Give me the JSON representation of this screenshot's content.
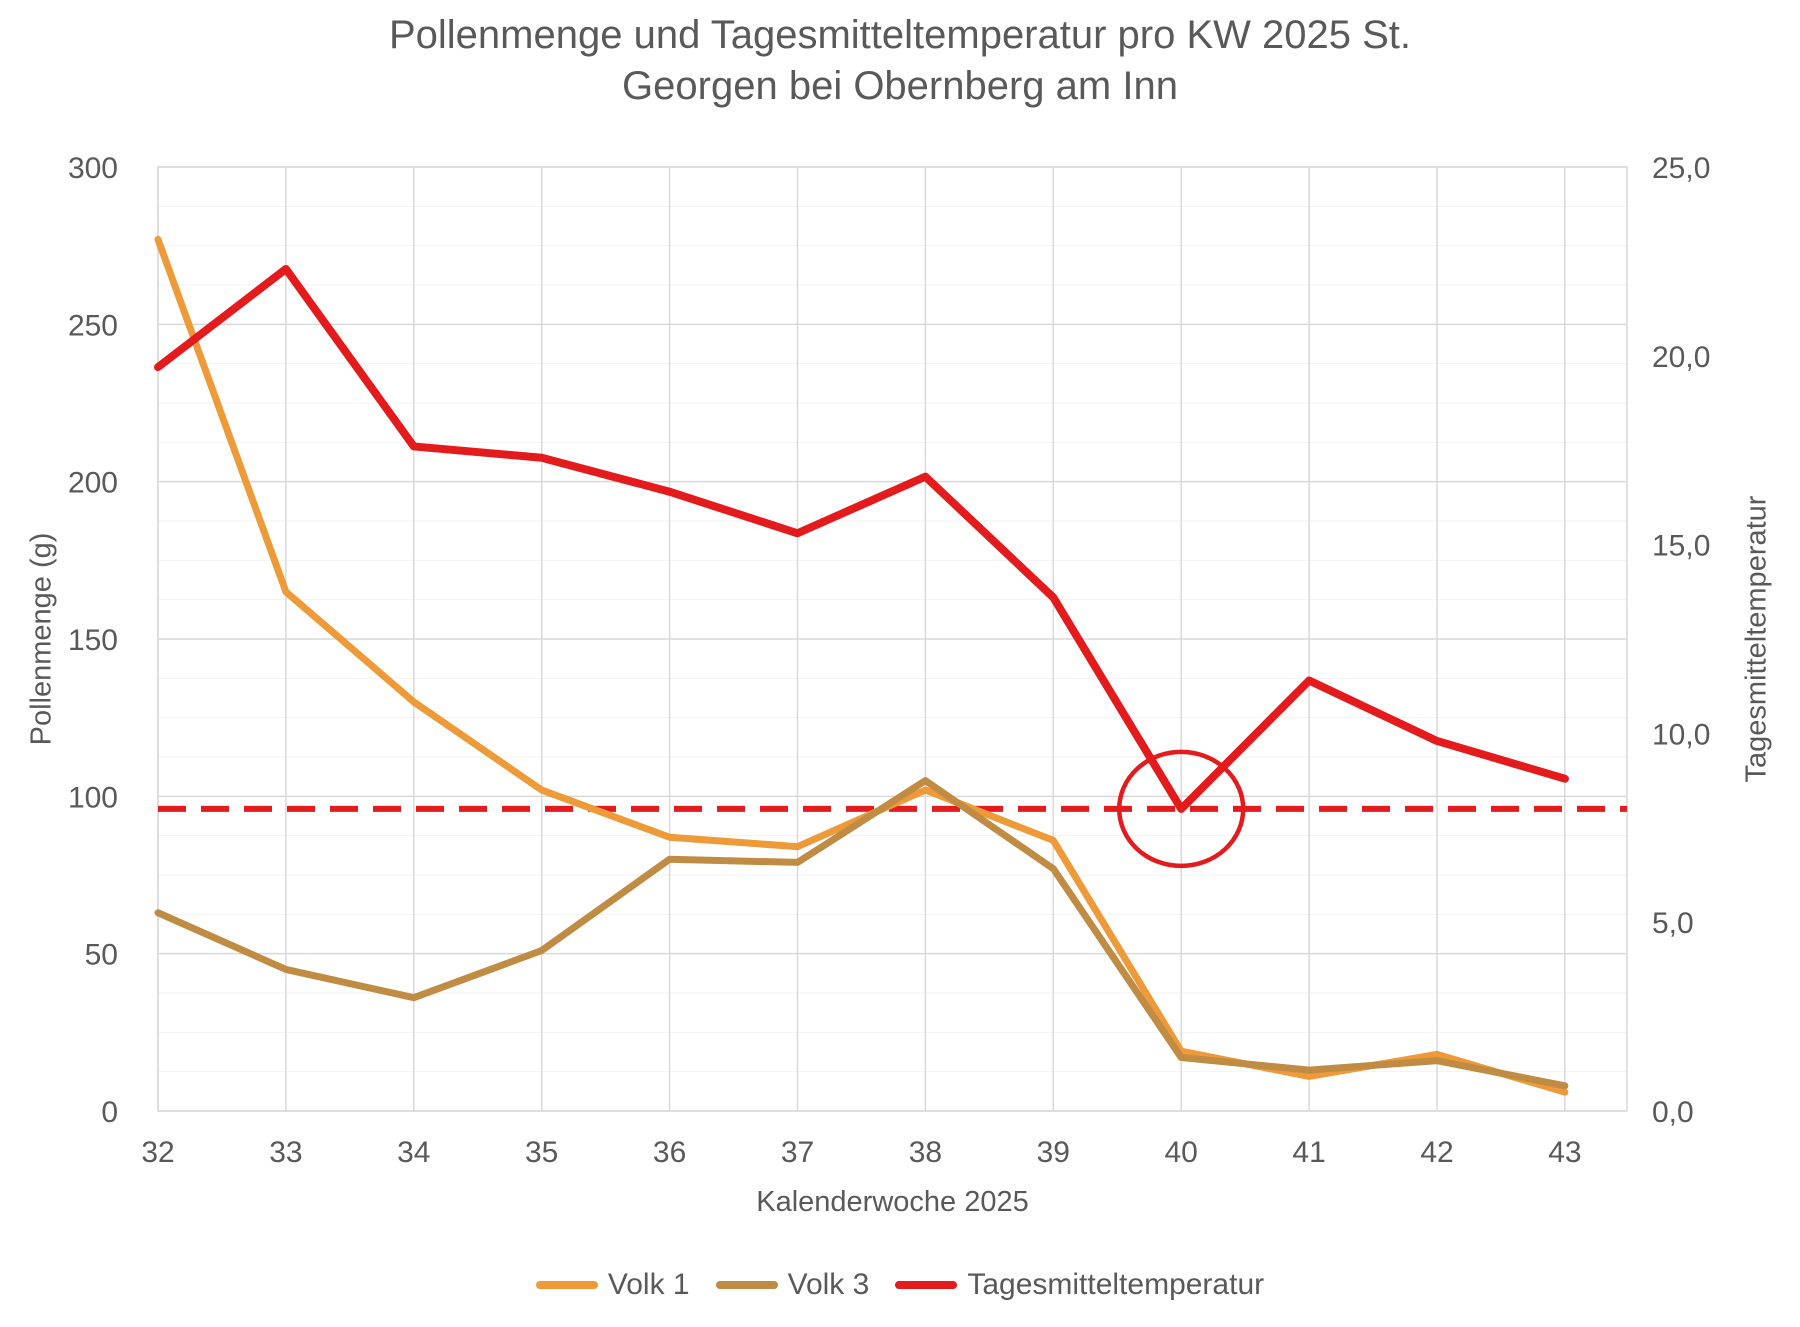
{
  "title": {
    "line1": "Pollenmenge und Tagesmitteltemperatur pro KW 2025 St.",
    "line2": "Georgen bei Obernberg am Inn"
  },
  "axes": {
    "left_title": "Pollenmenge (g)",
    "right_title": "Tagesmitteltemperatur",
    "x_title": "Kalenderwoche 2025",
    "left_ticks": [
      "300",
      "250",
      "200",
      "150",
      "100",
      "50",
      "0"
    ],
    "right_ticks": [
      "25,0",
      "20,0",
      "15,0",
      "10,0",
      "5,0",
      "0,0"
    ],
    "x_ticks": [
      "32",
      "33",
      "34",
      "35",
      "36",
      "37",
      "38",
      "39",
      "40",
      "41",
      "42",
      "43"
    ]
  },
  "legend": {
    "items": [
      {
        "label": "Volk 1",
        "color": "#EE9A38"
      },
      {
        "label": "Volk 3",
        "color": "#C08C44"
      },
      {
        "label": "Tagesmitteltemperatur",
        "color": "#E41B1D"
      }
    ]
  },
  "colors": {
    "grid_major": "#D9D9D9",
    "grid_minor": "#F2F2F2",
    "text": "#595959",
    "threshold": "#E41B1D"
  },
  "chart_data": {
    "type": "line",
    "x": [
      32,
      33,
      34,
      35,
      36,
      37,
      38,
      39,
      40,
      41,
      42,
      43
    ],
    "title": "Pollenmenge und Tagesmitteltemperatur pro KW 2025 St. Georgen bei Obernberg am Inn",
    "xlabel": "Kalenderwoche 2025",
    "ylabel_left": "Pollenmenge (g)",
    "ylabel_right": "Tagesmitteltemperatur",
    "ylim_left": [
      0,
      300
    ],
    "ylim_right": [
      0.0,
      25.0
    ],
    "grid": true,
    "legend_position": "bottom",
    "series": [
      {
        "name": "Volk 1",
        "axis": "left",
        "color": "#EE9A38",
        "width": 7,
        "values": [
          277,
          165,
          130,
          102,
          87,
          84,
          102,
          86,
          19,
          11,
          18,
          6
        ]
      },
      {
        "name": "Volk 3",
        "axis": "left",
        "color": "#C08C44",
        "width": 7,
        "values": [
          63,
          45,
          36,
          51,
          80,
          79,
          105,
          77,
          17,
          13,
          16,
          8
        ]
      },
      {
        "name": "Tagesmitteltemperatur",
        "axis": "right",
        "color": "#E41B1D",
        "width": 8,
        "values": [
          19.7,
          22.3,
          17.6,
          17.3,
          16.4,
          15.3,
          16.8,
          13.6,
          8.0,
          11.4,
          9.8,
          8.8
        ]
      }
    ],
    "threshold_line": {
      "axis": "right",
      "value": 8.0,
      "color": "#E41B1D",
      "style": "dashed"
    },
    "annotation_circle": {
      "x": 40,
      "axis": "right",
      "value": 8.0,
      "color": "#E41B1D"
    }
  }
}
